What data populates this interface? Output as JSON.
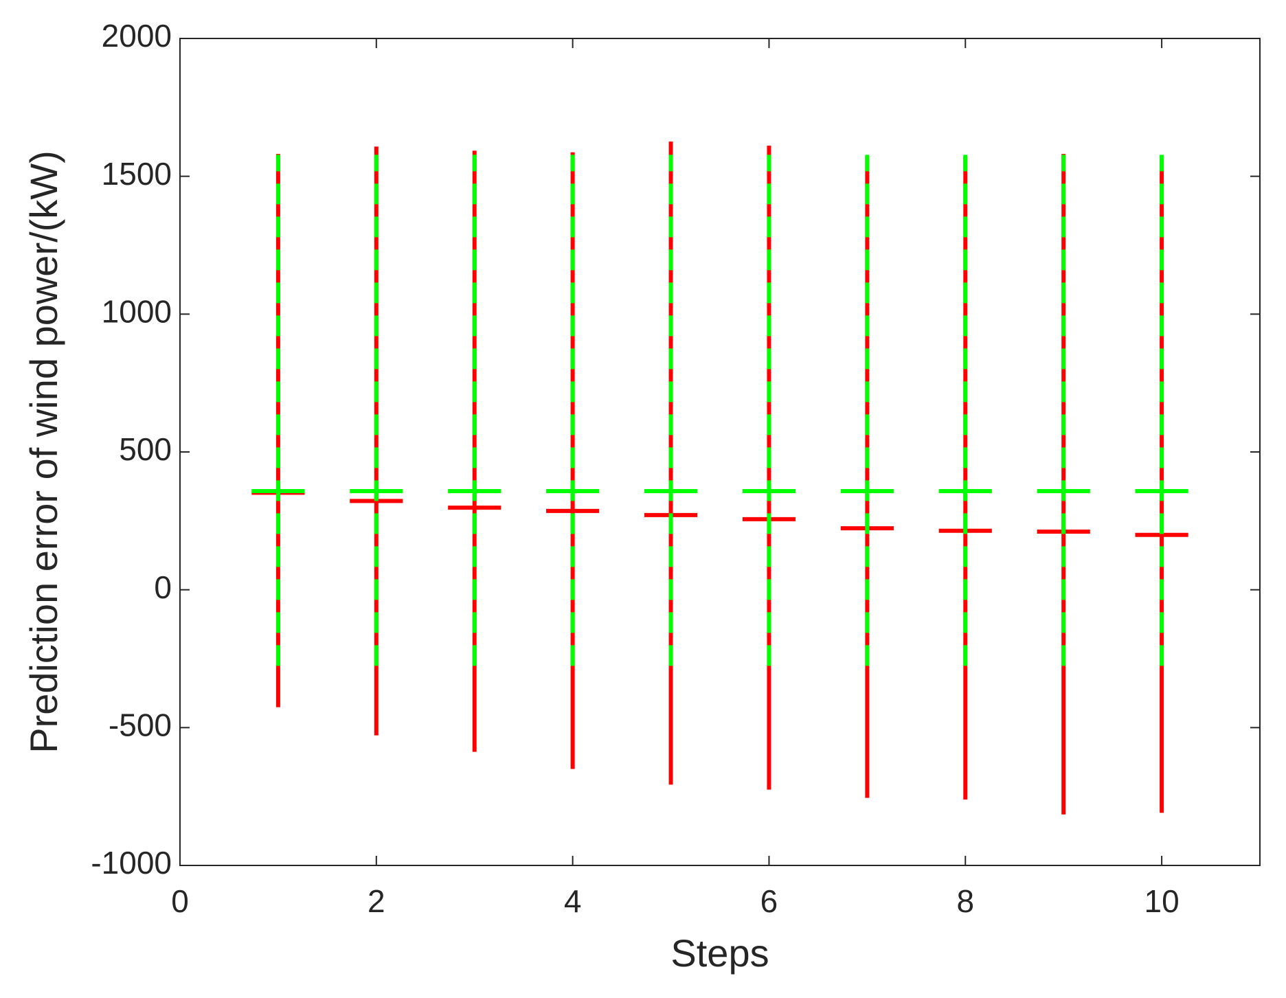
{
  "chart_data": {
    "type": "errorbar",
    "xlabel": "Steps",
    "ylabel": "Prediction error of wind power/(kW)",
    "xlim": [
      0,
      11
    ],
    "xticks": [
      0,
      2,
      4,
      6,
      8,
      10
    ],
    "ylim": [
      -1000,
      2000
    ],
    "yticks": [
      -1000,
      -500,
      0,
      500,
      1000,
      1500,
      2000
    ],
    "x": [
      1,
      2,
      3,
      4,
      5,
      6,
      7,
      8,
      9,
      10
    ],
    "series": [
      {
        "color": "#ff0000",
        "linestyle": "solid",
        "values": [
          352,
          322,
          298,
          286,
          271,
          256,
          223,
          214,
          211,
          199
        ],
        "lower": [
          -426,
          -528,
          -588,
          -650,
          -707,
          -725,
          -755,
          -761,
          -815,
          -809
        ],
        "upper": [
          1581,
          1608,
          1593,
          1587,
          1626,
          1611,
          1572,
          1572,
          1581,
          1572
        ]
      },
      {
        "color": "#00ff00",
        "linestyle": "dashed",
        "values": [
          358,
          358,
          358,
          358,
          358,
          358,
          358,
          358,
          358,
          358
        ],
        "lower": [
          -276,
          -276,
          -276,
          -276,
          -276,
          -276,
          -276,
          -276,
          -276,
          -276
        ],
        "upper": [
          1578,
          1578,
          1578,
          1578,
          1578,
          1578,
          1578,
          1578,
          1578,
          1578
        ]
      }
    ]
  }
}
